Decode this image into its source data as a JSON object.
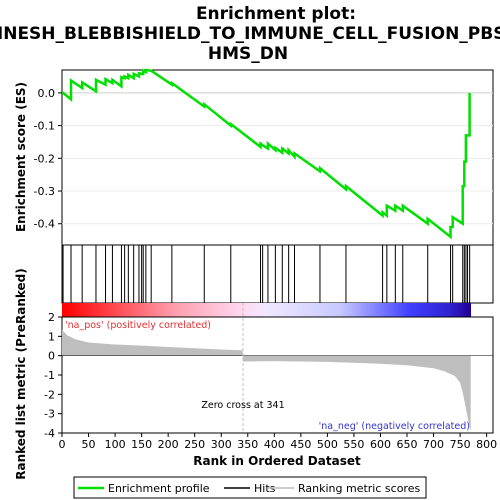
{
  "chart_data": {
    "type": "line",
    "title_line1": "Enrichment plot:",
    "title_line2": "JINESH_BLEBBISHIELD_TO_IMMUNE_CELL_FUSION_PBS",
    "title_line3": "HMS_DN",
    "xlabel": "Rank in Ordered Dataset",
    "ylabel_top": "Enrichment score (ES)",
    "ylabel_bottom": "Ranked list metric (PreRanked)",
    "xlim": [
      0,
      812
    ],
    "x_ticks": [
      0,
      50,
      100,
      150,
      200,
      250,
      300,
      350,
      400,
      450,
      500,
      550,
      600,
      650,
      700,
      750,
      800
    ],
    "es_ylim": [
      -0.465,
      0.07
    ],
    "es_ticks": [
      0.0,
      -0.1,
      -0.2,
      -0.3,
      -0.4
    ],
    "es_tick_labels": [
      "0.0",
      "-0.1",
      "-0.2",
      "-0.3",
      "-0.4"
    ],
    "metric_ylim": [
      -4,
      2
    ],
    "metric_ticks": [
      2,
      1,
      0,
      -1,
      -2,
      -3,
      -4
    ],
    "n_genes": 770,
    "zero_cross": 341,
    "zero_cross_label": "Zero cross at 341",
    "pos_label": "'na_pos' (positively correlated)",
    "neg_label": "'na_neg' (negatively correlated)",
    "hits": [
      2,
      17,
      38,
      64,
      82,
      95,
      112,
      118,
      125,
      135,
      145,
      150,
      153,
      158,
      168,
      207,
      268,
      318,
      374,
      378,
      388,
      402,
      415,
      427,
      438,
      486,
      535,
      604,
      612,
      628,
      642,
      689,
      732,
      736,
      755,
      758,
      761,
      764,
      768
    ],
    "es_points": [
      [
        0,
        0.0
      ],
      [
        2,
        0.0
      ],
      [
        17,
        -0.02
      ],
      [
        17,
        0.038
      ],
      [
        38,
        0.015
      ],
      [
        38,
        0.032
      ],
      [
        64,
        0.005
      ],
      [
        64,
        0.04
      ],
      [
        82,
        0.025
      ],
      [
        82,
        0.042
      ],
      [
        95,
        0.03
      ],
      [
        95,
        0.04
      ],
      [
        112,
        0.02
      ],
      [
        112,
        0.048
      ],
      [
        118,
        0.045
      ],
      [
        118,
        0.05
      ],
      [
        125,
        0.045
      ],
      [
        125,
        0.055
      ],
      [
        135,
        0.045
      ],
      [
        135,
        0.058
      ],
      [
        145,
        0.05
      ],
      [
        145,
        0.06
      ],
      [
        150,
        0.058
      ],
      [
        153,
        0.058
      ],
      [
        153,
        0.068
      ],
      [
        158,
        0.064
      ],
      [
        158,
        0.07
      ],
      [
        168,
        0.068
      ],
      [
        207,
        0.025
      ],
      [
        207,
        0.03
      ],
      [
        268,
        -0.042
      ],
      [
        268,
        -0.035
      ],
      [
        318,
        -0.1
      ],
      [
        318,
        -0.095
      ],
      [
        374,
        -0.165
      ],
      [
        374,
        -0.155
      ],
      [
        378,
        -0.16
      ],
      [
        388,
        -0.17
      ],
      [
        388,
        -0.155
      ],
      [
        402,
        -0.175
      ],
      [
        402,
        -0.168
      ],
      [
        415,
        -0.183
      ],
      [
        415,
        -0.17
      ],
      [
        427,
        -0.185
      ],
      [
        427,
        -0.175
      ],
      [
        438,
        -0.195
      ],
      [
        438,
        -0.185
      ],
      [
        486,
        -0.24
      ],
      [
        486,
        -0.23
      ],
      [
        535,
        -0.295
      ],
      [
        535,
        -0.285
      ],
      [
        604,
        -0.375
      ],
      [
        604,
        -0.365
      ],
      [
        612,
        -0.375
      ],
      [
        612,
        -0.345
      ],
      [
        628,
        -0.36
      ],
      [
        628,
        -0.345
      ],
      [
        642,
        -0.36
      ],
      [
        642,
        -0.345
      ],
      [
        689,
        -0.4
      ],
      [
        689,
        -0.385
      ],
      [
        732,
        -0.44
      ],
      [
        732,
        -0.41
      ],
      [
        736,
        -0.41
      ],
      [
        736,
        -0.38
      ],
      [
        755,
        -0.4
      ],
      [
        755,
        -0.285
      ],
      [
        758,
        -0.285
      ],
      [
        758,
        -0.21
      ],
      [
        761,
        -0.21
      ],
      [
        761,
        -0.13
      ],
      [
        764,
        -0.13
      ],
      [
        768,
        -0.13
      ],
      [
        768,
        0.0
      ]
    ],
    "metric_profile": [
      [
        0,
        1.35
      ],
      [
        10,
        1.05
      ],
      [
        25,
        0.85
      ],
      [
        50,
        0.68
      ],
      [
        100,
        0.58
      ],
      [
        150,
        0.52
      ],
      [
        200,
        0.45
      ],
      [
        250,
        0.38
      ],
      [
        300,
        0.32
      ],
      [
        340,
        0.28
      ],
      [
        341,
        -0.3
      ],
      [
        400,
        -0.28
      ],
      [
        500,
        -0.32
      ],
      [
        600,
        -0.42
      ],
      [
        650,
        -0.5
      ],
      [
        700,
        -0.65
      ],
      [
        720,
        -0.8
      ],
      [
        740,
        -1.05
      ],
      [
        750,
        -1.4
      ],
      [
        755,
        -1.9
      ],
      [
        760,
        -2.6
      ],
      [
        765,
        -3.3
      ],
      [
        770,
        -3.9
      ]
    ],
    "colors": {
      "enrichment_line": "#00e000",
      "hits": "#000000",
      "metric_fill": "#bebebe",
      "pos_text": "#e03030",
      "neg_text": "#3535d0",
      "zero_line": "#c0c0c0"
    }
  },
  "legend": {
    "items": [
      {
        "label": "Enrichment profile",
        "color": "#00e000",
        "kind": "line"
      },
      {
        "label": "Hits",
        "color": "#000000",
        "kind": "line"
      },
      {
        "label": "Ranking metric scores",
        "color": "#bebebe",
        "kind": "line"
      }
    ]
  }
}
